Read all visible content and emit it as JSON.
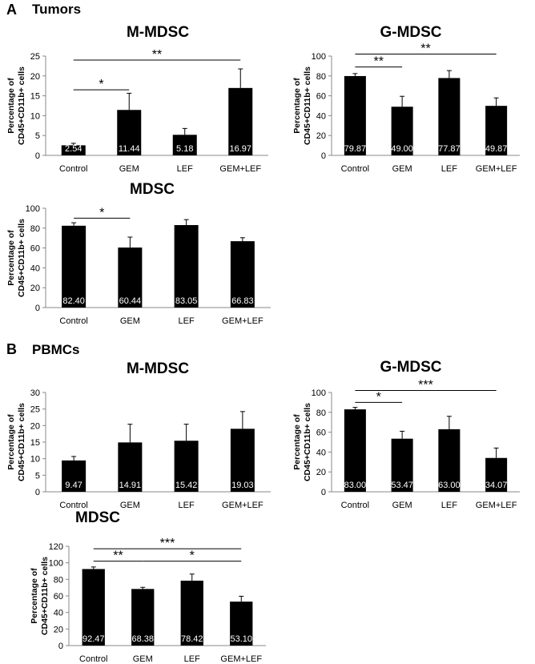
{
  "panel_a": {
    "letter": "A",
    "title": "Tumors"
  },
  "panel_b": {
    "letter": "B",
    "title": "PBMCs"
  },
  "bar_color": "#000000",
  "value_label_color": "#ffffff",
  "chart_data": [
    {
      "type": "bar",
      "title": "M-MDSC",
      "ylabel": "Percentage of CD45+CD11b+ cells",
      "categories": [
        "Control",
        "GEM",
        "LEF",
        "GEM+LEF"
      ],
      "values": [
        2.54,
        11.44,
        5.18,
        16.97
      ],
      "value_labels": [
        "2.54",
        "11.44",
        "5.18",
        "16.97"
      ],
      "errors": [
        0.5,
        4.2,
        1.6,
        4.8
      ],
      "ylim": [
        0,
        25
      ],
      "yticks": [
        "0",
        "5",
        "10",
        "15",
        "20",
        "25"
      ],
      "significance": [
        {
          "from": 0,
          "to": 1,
          "label": "*",
          "level": 16.5
        },
        {
          "from": 0,
          "to": 3,
          "label": "**",
          "level": 24.0
        }
      ]
    },
    {
      "type": "bar",
      "title": "G-MDSC",
      "ylabel": "Percentage of CD45+CD11b+ cells",
      "categories": [
        "Control",
        "GEM",
        "LEF",
        "GEM+LEF"
      ],
      "values": [
        79.87,
        49.0,
        77.87,
        49.87
      ],
      "value_labels": [
        "79.87",
        "49.00",
        "77.87",
        "49.87"
      ],
      "errors": [
        2.5,
        10.5,
        7.5,
        8.0
      ],
      "ylim": [
        0,
        100
      ],
      "yticks": [
        "0",
        "20",
        "40",
        "60",
        "80",
        "100"
      ],
      "significance": [
        {
          "from": 0,
          "to": 1,
          "label": "**",
          "level": 89
        },
        {
          "from": 0,
          "to": 3,
          "label": "**",
          "level": 102
        }
      ]
    },
    {
      "type": "bar",
      "title": "MDSC",
      "ylabel": "Percentage of CD45+CD11b+ cells",
      "categories": [
        "Control",
        "GEM",
        "LEF",
        "GEM+LEF"
      ],
      "values": [
        82.4,
        60.44,
        83.05,
        66.83
      ],
      "value_labels": [
        "82.40",
        "60.44",
        "83.05",
        "66.83"
      ],
      "errors": [
        3.0,
        10.5,
        5.5,
        3.5
      ],
      "ylim": [
        0,
        100
      ],
      "yticks": [
        "0",
        "20",
        "40",
        "60",
        "80",
        "100"
      ],
      "significance": [
        {
          "from": 0,
          "to": 1,
          "label": "*",
          "level": 90
        }
      ]
    },
    {
      "type": "bar",
      "title": "M-MDSC",
      "ylabel": "Percentage of CD45+CD11b+ cells",
      "categories": [
        "Control",
        "GEM",
        "LEF",
        "GEM+LEF"
      ],
      "values": [
        9.47,
        14.91,
        15.42,
        19.03
      ],
      "value_labels": [
        "9.47",
        "14.91",
        "15.42",
        "19.03"
      ],
      "errors": [
        1.2,
        5.5,
        5.0,
        5.2
      ],
      "ylim": [
        0,
        30
      ],
      "yticks": [
        "0",
        "5",
        "10",
        "15",
        "20",
        "25",
        "30"
      ],
      "significance": []
    },
    {
      "type": "bar",
      "title": "G-MDSC",
      "ylabel": "Percentage of CD45+CD11b+ cells",
      "categories": [
        "Control",
        "GEM",
        "LEF",
        "GEM+LEF"
      ],
      "values": [
        83.0,
        53.47,
        63.0,
        34.07
      ],
      "value_labels": [
        "83.00",
        "53.47",
        "63.00",
        "34.07"
      ],
      "errors": [
        2.0,
        7.5,
        13.0,
        10.0
      ],
      "ylim": [
        0,
        100
      ],
      "yticks": [
        "0",
        "20",
        "40",
        "60",
        "80",
        "100"
      ],
      "significance": [
        {
          "from": 0,
          "to": 1,
          "label": "*",
          "level": 90
        },
        {
          "from": 0,
          "to": 3,
          "label": "***",
          "level": 102
        }
      ]
    },
    {
      "type": "bar",
      "title": "MDSC",
      "ylabel": "Percentage of CD45+CD11b+ cells",
      "categories": [
        "Control",
        "GEM",
        "LEF",
        "GEM+LEF"
      ],
      "values": [
        92.47,
        68.38,
        78.42,
        53.1
      ],
      "value_labels": [
        "92.47",
        "68.38",
        "78.42",
        "53.10"
      ],
      "errors": [
        2.5,
        2.0,
        8.0,
        6.5
      ],
      "ylim": [
        0,
        120
      ],
      "yticks": [
        "0",
        "20",
        "40",
        "60",
        "80",
        "100",
        "120"
      ],
      "significance": [
        {
          "from": 0,
          "to": 1,
          "label": "**",
          "level": 102
        },
        {
          "from": 1,
          "to": 3,
          "label": "*",
          "level": 102
        },
        {
          "from": 0,
          "to": 3,
          "label": "***",
          "level": 117
        }
      ]
    }
  ]
}
